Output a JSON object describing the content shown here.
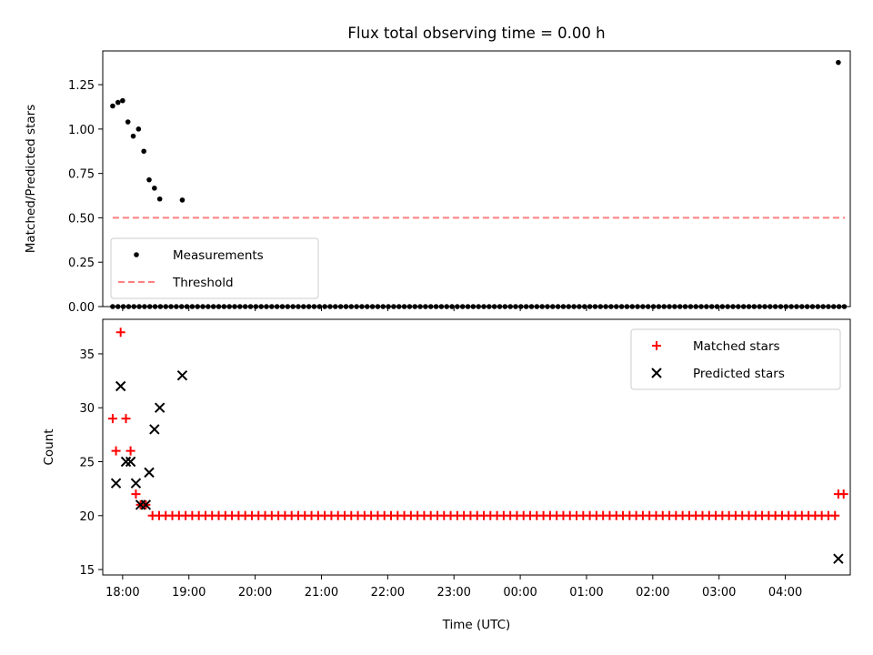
{
  "chart_data": {
    "title": "Flux total observing time = 0.00 h",
    "xlabel": "Time (UTC)",
    "x_unit": "hours since 17:00 UTC",
    "x_ticks": [
      {
        "t": 1,
        "label": "18:00"
      },
      {
        "t": 2,
        "label": "19:00"
      },
      {
        "t": 3,
        "label": "20:00"
      },
      {
        "t": 4,
        "label": "21:00"
      },
      {
        "t": 5,
        "label": "22:00"
      },
      {
        "t": 6,
        "label": "23:00"
      },
      {
        "t": 7,
        "label": "00:00"
      },
      {
        "t": 8,
        "label": "01:00"
      },
      {
        "t": 9,
        "label": "02:00"
      },
      {
        "t": 10,
        "label": "03:00"
      },
      {
        "t": 11,
        "label": "04:00"
      }
    ],
    "xlim": [
      0.7,
      11.98
    ],
    "panels": [
      {
        "type": "scatter",
        "ylabel": "Matched/Predicted stars",
        "ylim": [
          0,
          1.44
        ],
        "y_ticks": [
          "0.00",
          "0.25",
          "0.50",
          "0.75",
          "1.00",
          "1.25"
        ],
        "legend_position": "lower-left",
        "series": [
          {
            "name": "Measurements",
            "marker": "dot",
            "color": "#000000",
            "x": [
              0.85,
              0.93,
              1.0,
              1.08,
              1.16,
              1.24,
              1.32,
              1.4,
              1.48,
              1.56,
              1.9,
              11.8
            ],
            "y": [
              1.13,
              1.15,
              1.16,
              1.04,
              0.96,
              1.0,
              0.875,
              0.714,
              0.667,
              0.606,
              0.6,
              1.375
            ],
            "zero_run": {
              "start": 0.85,
              "step": 0.08,
              "end": 11.9,
              "y": 0
            }
          },
          {
            "name": "Threshold",
            "style": "dashed-line",
            "color": "#ff7f7f",
            "x": [
              0.85,
              11.9
            ],
            "y": [
              0.5,
              0.5
            ]
          }
        ]
      },
      {
        "type": "scatter",
        "ylabel": "Count",
        "ylim": [
          14.5,
          38.2
        ],
        "y_ticks": [
          "15",
          "20",
          "25",
          "30",
          "35"
        ],
        "legend_position": "upper-right",
        "series": [
          {
            "name": "Matched stars",
            "marker": "plus",
            "color": "#ff0000",
            "x": [
              0.85,
              0.9,
              0.97,
              1.05,
              1.12,
              1.2,
              1.27,
              1.35,
              11.8,
              11.88
            ],
            "y": [
              29,
              26,
              37,
              29,
              26,
              22,
              21,
              21,
              22,
              22
            ],
            "run": {
              "start": 1.45,
              "step": 0.1,
              "end": 11.75,
              "y": 20
            }
          },
          {
            "name": "Predicted stars",
            "marker": "x",
            "color": "#000000",
            "x": [
              0.9,
              0.97,
              1.05,
              1.12,
              1.2,
              1.27,
              1.35,
              1.4,
              1.48,
              1.56,
              1.9,
              11.8
            ],
            "y": [
              23,
              32,
              25,
              25,
              23,
              21,
              21,
              24,
              28,
              30,
              33,
              16
            ]
          }
        ]
      }
    ]
  }
}
